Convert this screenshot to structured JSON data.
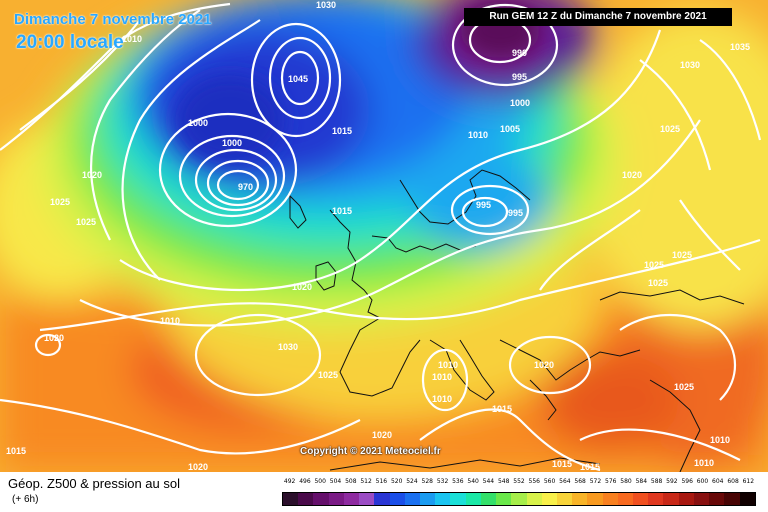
{
  "header": {
    "date": "Dimanche 7 novembre 2021",
    "time": "20:00 locale",
    "run": "Run GEM 12 Z du Dimanche 7 novembre 2021"
  },
  "copyright": "Copyright © 2021 Meteociel.fr",
  "footer": {
    "title": "Géop. Z500 & pression au sol",
    "subtitle": "(+ 6h)"
  },
  "isobar_labels": [
    "1030",
    "1010",
    "1000",
    "1000",
    "1015",
    "970",
    "1045",
    "995",
    "990",
    "995",
    "1000",
    "1010",
    "1005",
    "1015",
    "995",
    "1000",
    "1020",
    "1025",
    "1025",
    "1020",
    "1010",
    "1020",
    "1030",
    "1025",
    "1010",
    "1010",
    "1010",
    "1020",
    "1015",
    "1015",
    "1020",
    "1015",
    "1015",
    "1010",
    "1010",
    "1020",
    "1025",
    "1025",
    "1025",
    "1025",
    "1020",
    "1035",
    "1030",
    "1025"
  ],
  "colorscale": {
    "labels": [
      "492",
      "496",
      "500",
      "504",
      "508",
      "512",
      "516",
      "520",
      "524",
      "528",
      "532",
      "536",
      "540",
      "544",
      "548",
      "552",
      "556",
      "560",
      "564",
      "568",
      "572",
      "576",
      "580",
      "584",
      "588",
      "592",
      "596",
      "600",
      "604",
      "608",
      "612"
    ],
    "colors": [
      "#2b0f2b",
      "#4a0a4a",
      "#650f6b",
      "#7a1a85",
      "#8e2aa0",
      "#9b4cc4",
      "#2a35d4",
      "#1a4ee8",
      "#1a70f0",
      "#1a9bf0",
      "#1ac4f0",
      "#1ae0d8",
      "#1ae8a6",
      "#33e06a",
      "#6ae84a",
      "#a6ee4a",
      "#d8f24a",
      "#f8f04a",
      "#f8d43a",
      "#f8b428",
      "#f89a20",
      "#f88020",
      "#f86a20",
      "#f05020",
      "#e03820",
      "#c82818",
      "#a81810",
      "#881010",
      "#680808",
      "#480404",
      "#100000"
    ]
  }
}
